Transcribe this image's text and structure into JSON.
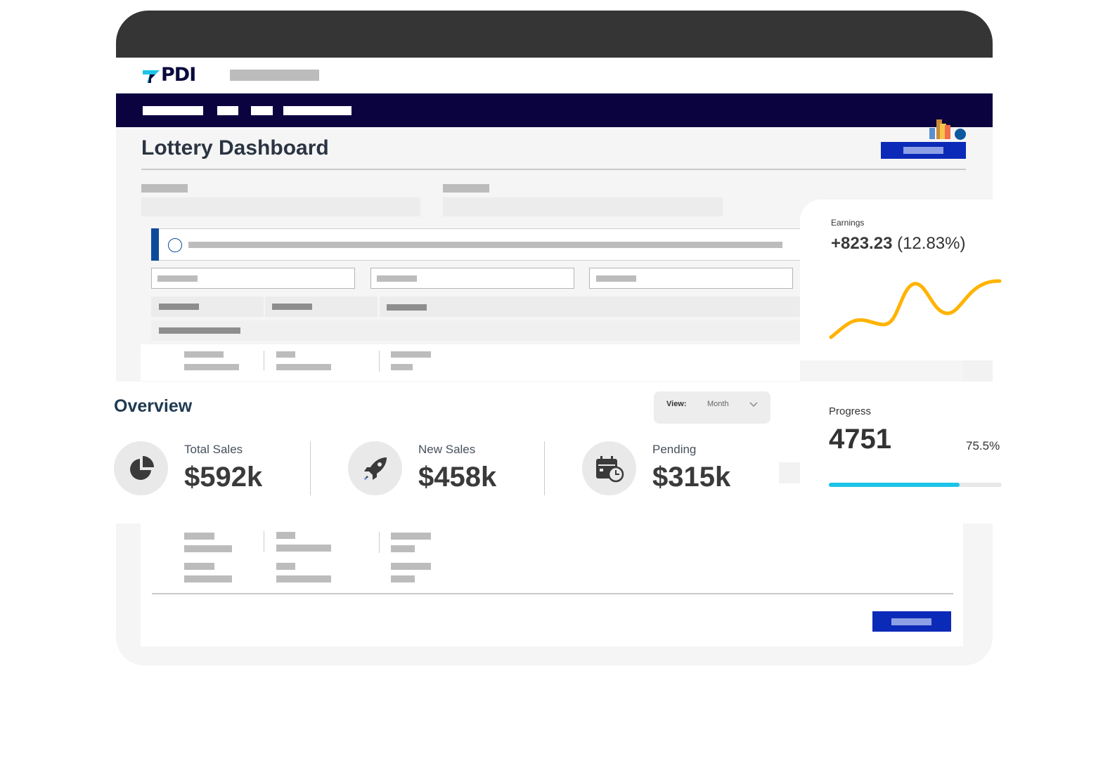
{
  "page": {
    "title": "Lottery Dashboard"
  },
  "brand": {
    "logo_text": "PDI"
  },
  "earnings": {
    "label": "Earnings",
    "value": "+823.23",
    "change": "(12.83%)"
  },
  "progress": {
    "label": "Progress",
    "value": "4751",
    "percent_text": "75.5%",
    "fraction": 0.755
  },
  "overview": {
    "title": "Overview",
    "view_label": "View:",
    "view_value": "Month",
    "stats": [
      {
        "label": "Total Sales",
        "value": "$592k",
        "icon": "pie-chart-icon"
      },
      {
        "label": "New Sales",
        "value": "$458k",
        "icon": "rocket-icon"
      },
      {
        "label": "Pending",
        "value": "$315k",
        "icon": "calendar-clock-icon"
      }
    ]
  },
  "colors": {
    "frame": "#353535",
    "navbar": "#0b0240",
    "primary": "#0c2ab8",
    "accent_line": "#ffb300",
    "progress": "#1bc4e8",
    "heading": "#1f3a52"
  }
}
